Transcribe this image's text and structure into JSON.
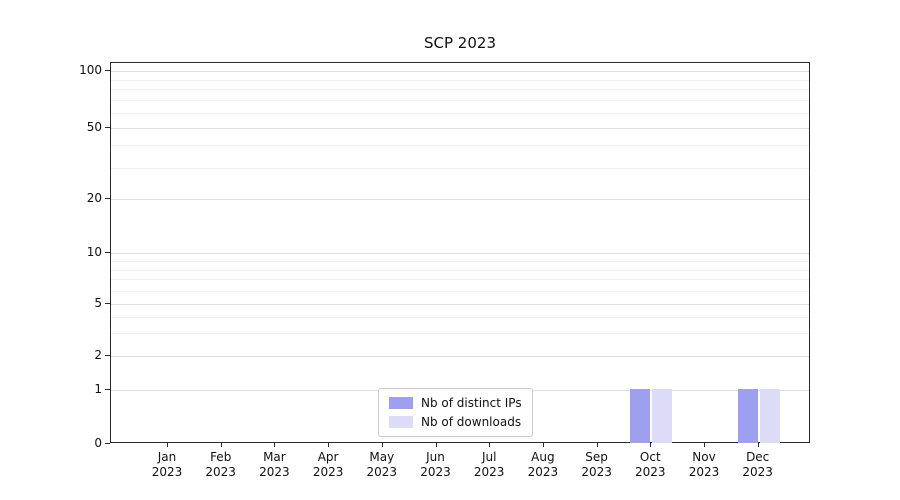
{
  "chart_data": {
    "type": "bar",
    "title": "SCP 2023",
    "categories": [
      "Jan 2023",
      "Feb 2023",
      "Mar 2023",
      "Apr 2023",
      "May 2023",
      "Jun 2023",
      "Jul 2023",
      "Aug 2023",
      "Sep 2023",
      "Oct 2023",
      "Nov 2023",
      "Dec 2023"
    ],
    "series": [
      {
        "name": "Nb of distinct IPs",
        "color": "#9f9ff0",
        "values": [
          0,
          0,
          0,
          0,
          0,
          0,
          0,
          0,
          0,
          1,
          0,
          1
        ]
      },
      {
        "name": "Nb of downloads",
        "color": "#dcdcf8",
        "values": [
          0,
          0,
          0,
          0,
          0,
          0,
          0,
          0,
          0,
          1,
          0,
          1
        ]
      }
    ],
    "yscale": "symlog",
    "y_ticks": [
      0,
      1,
      2,
      5,
      10,
      20,
      50,
      100
    ],
    "ylim": [
      0,
      110
    ],
    "xlabel": "",
    "ylabel": "",
    "grid": true,
    "legend_position": "lower-center-inside"
  }
}
